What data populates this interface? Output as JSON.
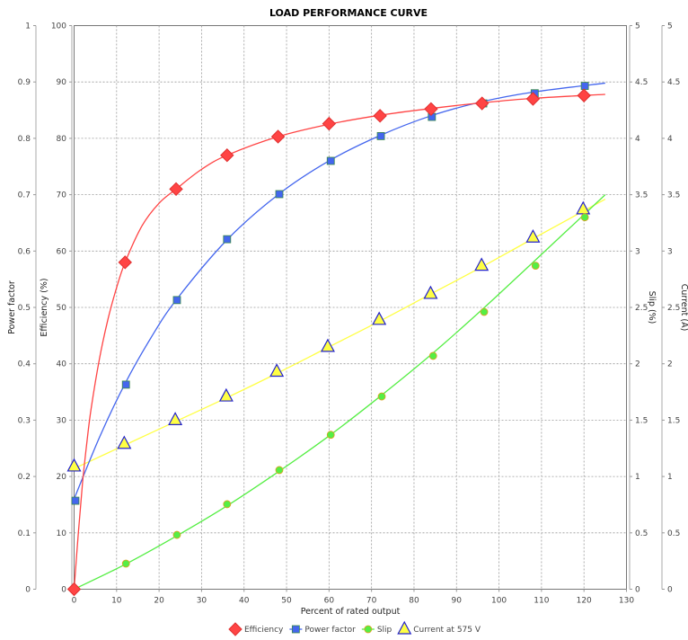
{
  "chart_data": {
    "type": "line",
    "title": "LOAD PERFORMANCE CURVE",
    "xlabel": "Percent of rated output",
    "xlim": [
      0,
      130
    ],
    "x_ticks": [
      "0",
      "10",
      "20",
      "30",
      "40",
      "50",
      "60",
      "70",
      "80",
      "90",
      "100",
      "110",
      "120",
      "130"
    ],
    "grid": true,
    "legend_position": "bottom",
    "axes": {
      "power_factor": {
        "label": "Power factor",
        "range": [
          0,
          1
        ],
        "ticks": [
          "0",
          "0.1",
          "0.2",
          "0.3",
          "0.4",
          "0.5",
          "0.6",
          "0.7",
          "0.8",
          "0.9",
          "1"
        ]
      },
      "efficiency": {
        "label": "Efficiency (%)",
        "range": [
          0,
          100
        ],
        "ticks": [
          "0",
          "10",
          "20",
          "30",
          "40",
          "50",
          "60",
          "70",
          "80",
          "90",
          "100"
        ]
      },
      "slip": {
        "label": "Slip (%)",
        "range": [
          0,
          5
        ],
        "ticks": [
          "0",
          "0.5",
          "1",
          "1.5",
          "2",
          "2.5",
          "3",
          "3.5",
          "4",
          "4.5",
          "5"
        ]
      },
      "current": {
        "label": "Current (A)",
        "range": [
          0,
          5
        ],
        "ticks": [
          "0",
          "0.5",
          "1",
          "1.5",
          "2",
          "2.5",
          "3",
          "3.5",
          "4",
          "4.5",
          "5"
        ]
      }
    },
    "series": [
      {
        "name": "Efficiency",
        "axis": "efficiency",
        "color": "#ff4444",
        "marker": "diamond",
        "points": [
          [
            0,
            0
          ],
          [
            12,
            58
          ],
          [
            24,
            71
          ],
          [
            36,
            77
          ],
          [
            48,
            80.3
          ],
          [
            60,
            82.6
          ],
          [
            72,
            84
          ],
          [
            84,
            85.2
          ],
          [
            96,
            86.2
          ],
          [
            108,
            87
          ],
          [
            120,
            87.6
          ]
        ],
        "fit": [
          [
            0,
            0
          ],
          [
            1,
            10
          ],
          [
            2,
            19
          ],
          [
            3,
            26
          ],
          [
            4,
            32
          ],
          [
            6,
            41
          ],
          [
            8,
            48
          ],
          [
            10,
            53.5
          ],
          [
            12,
            58
          ],
          [
            16,
            64.5
          ],
          [
            20,
            68.5
          ],
          [
            24,
            71
          ],
          [
            30,
            74.5
          ],
          [
            36,
            77
          ],
          [
            48,
            80.3
          ],
          [
            60,
            82.5
          ],
          [
            72,
            84.1
          ],
          [
            84,
            85.3
          ],
          [
            96,
            86.3
          ],
          [
            108,
            87.1
          ],
          [
            125,
            87.8
          ]
        ]
      },
      {
        "name": "Power factor",
        "axis": "power_factor",
        "color": "#4466ee",
        "marker": "square",
        "points": [
          [
            0.3,
            0.157
          ],
          [
            12.2,
            0.363
          ],
          [
            24.2,
            0.513
          ],
          [
            36,
            0.621
          ],
          [
            48.3,
            0.701
          ],
          [
            60.4,
            0.76
          ],
          [
            72.2,
            0.804
          ],
          [
            84.2,
            0.838
          ],
          [
            96.3,
            0.862
          ],
          [
            108.4,
            0.88
          ],
          [
            120.2,
            0.893
          ]
        ],
        "fit": [
          [
            0,
            0.16
          ],
          [
            6,
            0.27
          ],
          [
            12,
            0.365
          ],
          [
            18,
            0.445
          ],
          [
            24,
            0.513
          ],
          [
            36,
            0.62
          ],
          [
            48,
            0.7
          ],
          [
            60,
            0.76
          ],
          [
            72,
            0.805
          ],
          [
            84,
            0.84
          ],
          [
            96,
            0.865
          ],
          [
            108,
            0.882
          ],
          [
            125,
            0.898
          ]
        ]
      },
      {
        "name": "Slip",
        "axis": "slip",
        "color": "#55ee44",
        "marker": "circle",
        "points": [
          [
            12.2,
            0.227
          ],
          [
            24.2,
            0.482
          ],
          [
            36,
            0.754
          ],
          [
            48.3,
            1.057
          ],
          [
            60.4,
            1.37
          ],
          [
            72.4,
            1.71
          ],
          [
            84.5,
            2.07
          ],
          [
            96.5,
            2.46
          ],
          [
            108.6,
            2.87
          ],
          [
            120.2,
            3.3
          ]
        ],
        "fit": [
          [
            0,
            0
          ],
          [
            12,
            0.22
          ],
          [
            24,
            0.47
          ],
          [
            36,
            0.74
          ],
          [
            48,
            1.04
          ],
          [
            60,
            1.36
          ],
          [
            72,
            1.71
          ],
          [
            84,
            2.08
          ],
          [
            96,
            2.48
          ],
          [
            108,
            2.9
          ],
          [
            125,
            3.5
          ]
        ]
      },
      {
        "name": "Current at 575  V",
        "axis": "current",
        "color": "#ffff44",
        "marker": "triangle",
        "points": [
          [
            0,
            1.089
          ],
          [
            11.8,
            1.29
          ],
          [
            23.8,
            1.5
          ],
          [
            35.8,
            1.71
          ],
          [
            47.7,
            1.93
          ],
          [
            59.7,
            2.15
          ],
          [
            71.8,
            2.39
          ],
          [
            83.9,
            2.62
          ],
          [
            95.9,
            2.87
          ],
          [
            108,
            3.12
          ],
          [
            119.8,
            3.37
          ]
        ],
        "fit": [
          [
            0,
            1.07
          ],
          [
            12,
            1.28
          ],
          [
            24,
            1.49
          ],
          [
            36,
            1.7
          ],
          [
            48,
            1.92
          ],
          [
            60,
            2.15
          ],
          [
            72,
            2.38
          ],
          [
            84,
            2.62
          ],
          [
            96,
            2.86
          ],
          [
            108,
            3.11
          ],
          [
            125,
            3.46
          ]
        ]
      }
    ]
  }
}
